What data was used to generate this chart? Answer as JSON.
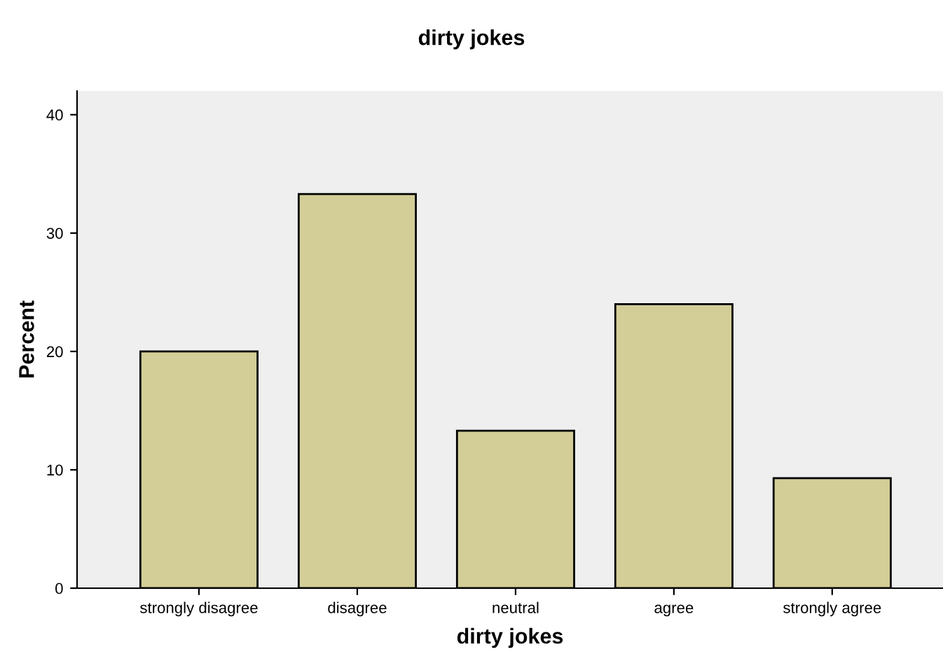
{
  "chart_data": {
    "type": "bar",
    "title": "dirty jokes",
    "xlabel": "dirty jokes",
    "ylabel": "Percent",
    "categories": [
      "strongly disagree",
      "disagree",
      "neutral",
      "agree",
      "strongly agree"
    ],
    "values": [
      20,
      33.3,
      13.3,
      24,
      9.3
    ],
    "color": "#d3ce97",
    "ylim": [
      0,
      42
    ],
    "yticks": [
      0,
      10,
      20,
      30,
      40
    ],
    "grid": false,
    "legend": false
  }
}
